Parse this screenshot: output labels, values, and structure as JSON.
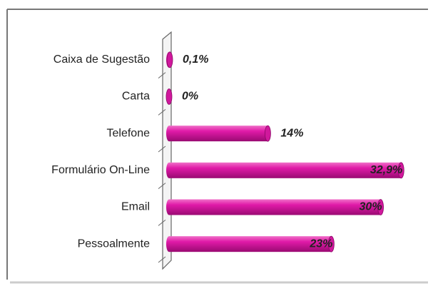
{
  "chart_data": {
    "type": "bar",
    "orientation": "horizontal",
    "categories": [
      "Caixa de Sugestão",
      "Carta",
      "Telefone",
      "Formulário On-Line",
      "Email",
      "Pessoalmente"
    ],
    "values": [
      0.1,
      0,
      14,
      32.9,
      30,
      23
    ],
    "value_labels": [
      "0,1%",
      "0%",
      "14%",
      "32,9%",
      "30%",
      "23%"
    ],
    "color": "#d0189c",
    "xlim": [
      0,
      35
    ]
  }
}
